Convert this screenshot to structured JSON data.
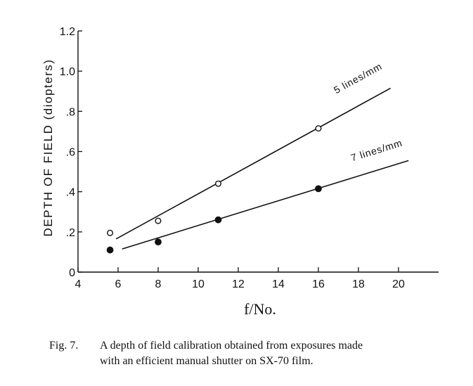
{
  "chart_data": {
    "type": "scatter",
    "title": "",
    "xlabel": "f/No.",
    "ylabel": "DEPTH OF FIELD (diopters)",
    "xlim": [
      4,
      22
    ],
    "ylim": [
      0,
      1.2
    ],
    "x_ticks": [
      4,
      6,
      8,
      10,
      12,
      14,
      16,
      18,
      20
    ],
    "x_tick_labels": [
      "4",
      "6",
      "8",
      "10",
      "12",
      "14",
      "16",
      "18",
      "20"
    ],
    "y_ticks": [
      0,
      0.2,
      0.4,
      0.6,
      0.8,
      1.0,
      1.2
    ],
    "y_tick_labels": [
      "0",
      ".2",
      ".4",
      ".6",
      ".8",
      "1.0",
      "1.2"
    ],
    "grid": false,
    "series": [
      {
        "name": "5 lines/mm",
        "marker": "open-circle",
        "points": [
          [
            5.6,
            0.195
          ],
          [
            8,
            0.255
          ],
          [
            11,
            0.44
          ],
          [
            16,
            0.715
          ]
        ],
        "fit_line": [
          [
            5.9,
            0.165
          ],
          [
            19.6,
            0.915
          ]
        ]
      },
      {
        "name": "7 lines/mm",
        "marker": "filled-circle",
        "points": [
          [
            5.6,
            0.11
          ],
          [
            8,
            0.15
          ],
          [
            11,
            0.26
          ],
          [
            16,
            0.415
          ]
        ],
        "fit_line": [
          [
            6.2,
            0.115
          ],
          [
            20.5,
            0.555
          ]
        ]
      }
    ]
  },
  "caption": {
    "figure_number": "Fig. 7.",
    "line1": "A depth of field calibration obtained from exposures made",
    "line2": "with an efficient manual shutter on SX-70 film."
  }
}
